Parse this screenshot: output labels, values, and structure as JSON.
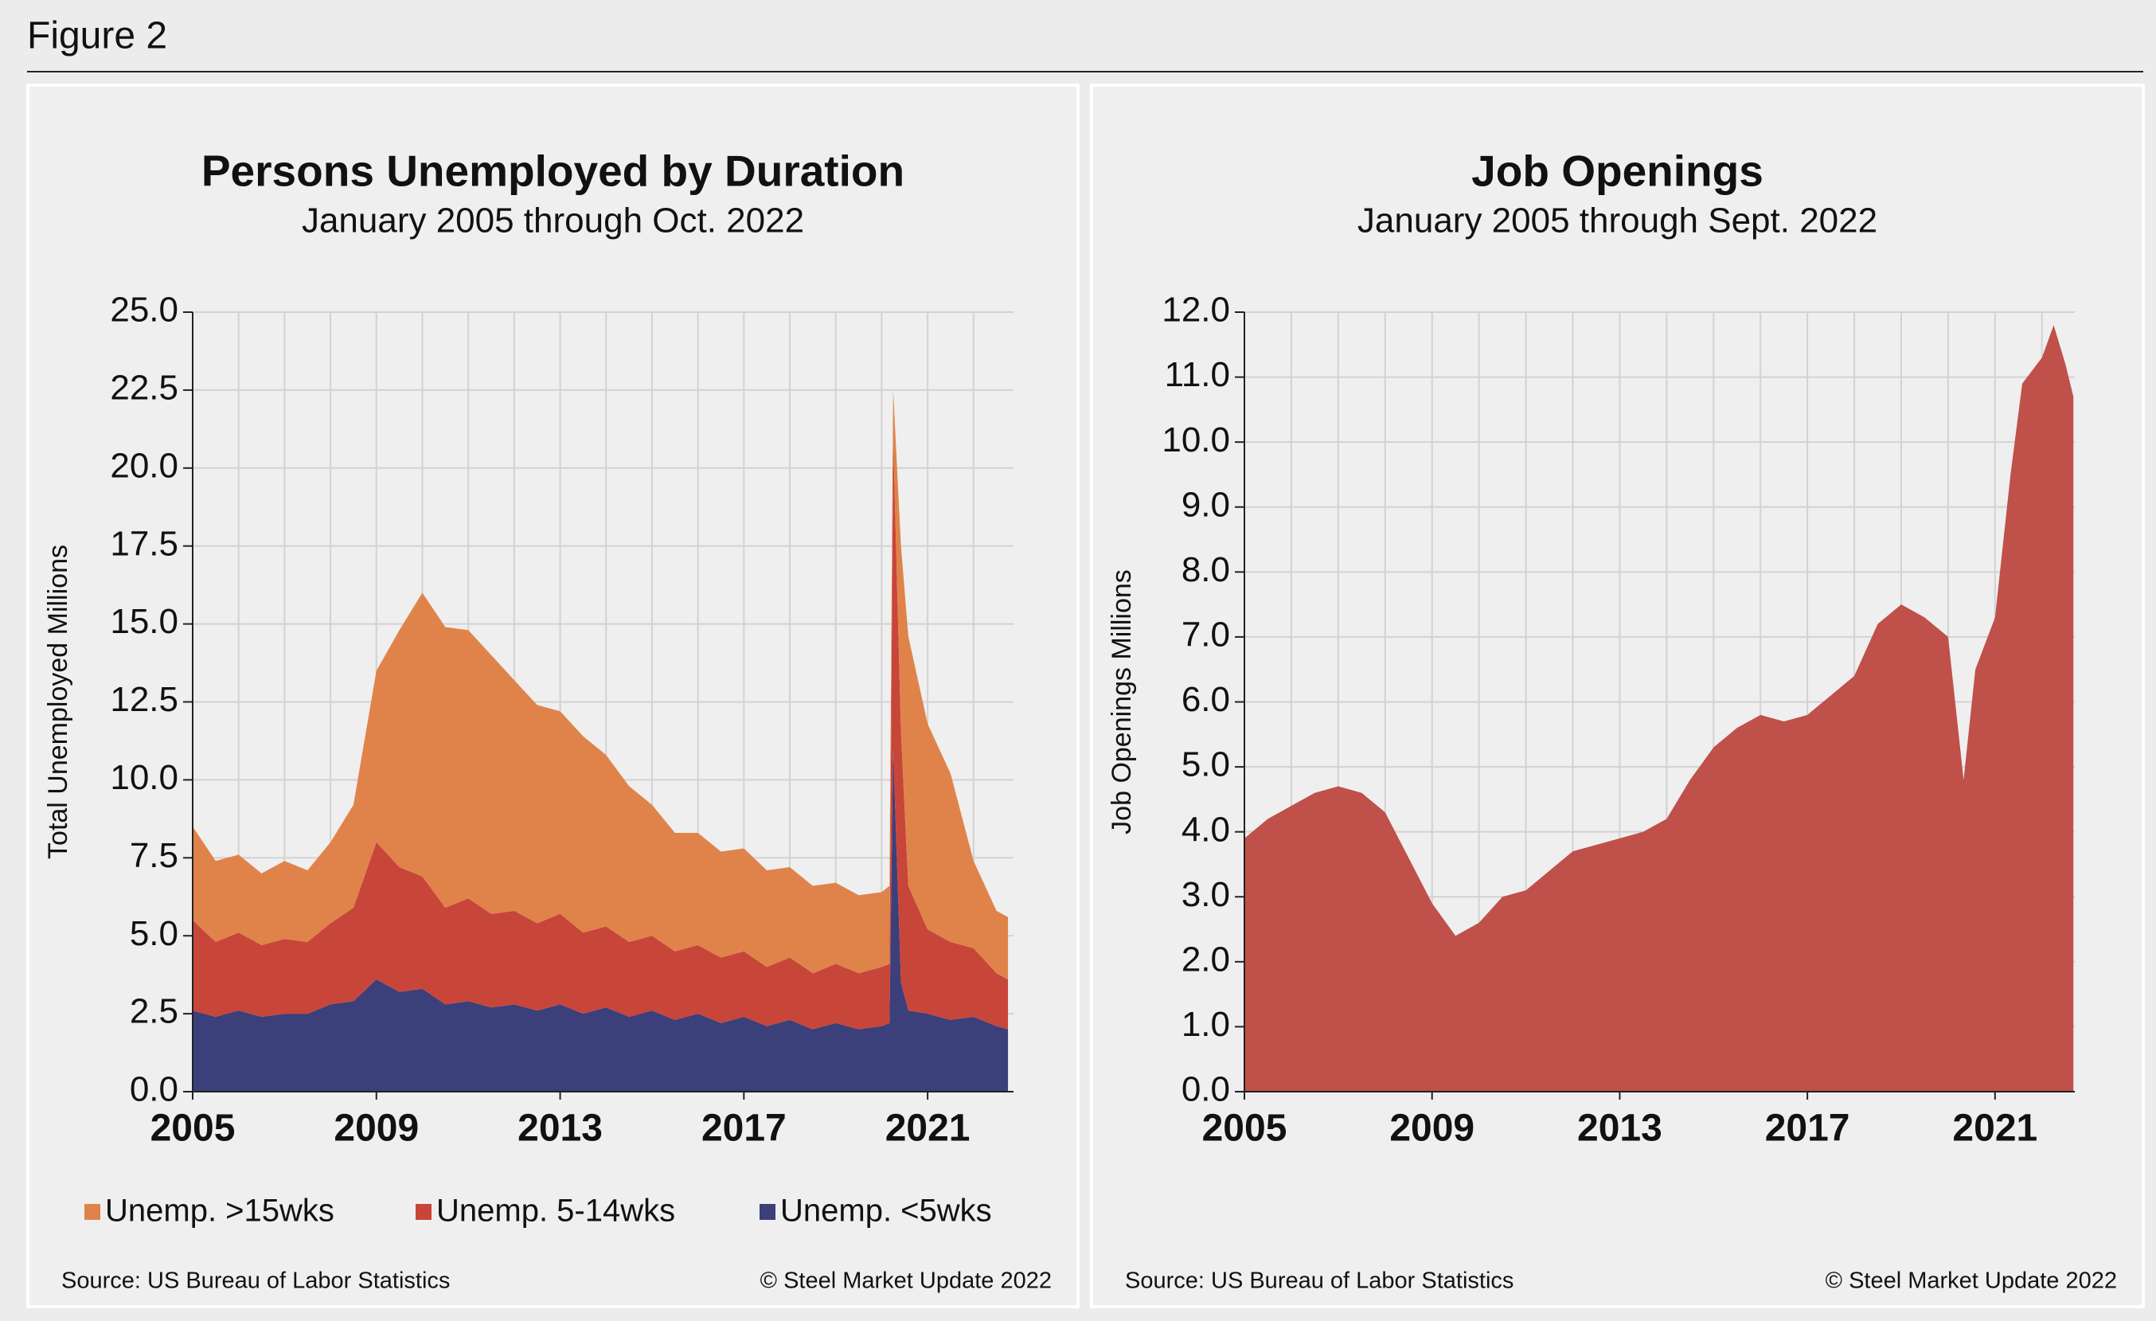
{
  "figure_label": "Figure 2",
  "chart_data": [
    {
      "type": "stacked-area",
      "title": "Persons Unemployed by Duration",
      "subtitle": "January 2005 through Oct. 2022",
      "y_label": "Total Unemployed Millions",
      "x": [
        2005.0,
        2005.5,
        2006.0,
        2006.5,
        2007.0,
        2007.5,
        2008.0,
        2008.5,
        2009.0,
        2009.5,
        2010.0,
        2010.5,
        2011.0,
        2011.5,
        2012.0,
        2012.5,
        2013.0,
        2013.5,
        2014.0,
        2014.5,
        2015.0,
        2015.5,
        2016.0,
        2016.5,
        2017.0,
        2017.5,
        2018.0,
        2018.5,
        2019.0,
        2019.5,
        2020.0,
        2020.17,
        2020.25,
        2020.42,
        2020.58,
        2021.0,
        2021.5,
        2022.0,
        2022.5,
        2022.75
      ],
      "series": [
        {
          "name": "Unemp. >15wks",
          "color": "#e0834a",
          "values": [
            3.0,
            2.6,
            2.5,
            2.3,
            2.5,
            2.3,
            2.6,
            3.3,
            5.5,
            7.6,
            9.1,
            9.0,
            8.6,
            8.3,
            7.4,
            7.0,
            6.5,
            6.3,
            5.5,
            5.0,
            4.2,
            3.8,
            3.6,
            3.4,
            3.3,
            3.1,
            2.9,
            2.8,
            2.6,
            2.5,
            2.4,
            2.5,
            1.5,
            6.0,
            8.0,
            6.6,
            5.4,
            2.8,
            2.0,
            2.0
          ]
        },
        {
          "name": "Unemp. 5-14wks",
          "color": "#c8453a",
          "values": [
            2.9,
            2.4,
            2.5,
            2.3,
            2.4,
            2.3,
            2.6,
            3.0,
            4.4,
            4.0,
            3.6,
            3.1,
            3.3,
            3.0,
            3.0,
            2.8,
            2.9,
            2.6,
            2.6,
            2.4,
            2.4,
            2.2,
            2.2,
            2.1,
            2.1,
            1.9,
            2.0,
            1.8,
            1.9,
            1.8,
            1.9,
            1.9,
            10.0,
            8.0,
            4.0,
            2.7,
            2.5,
            2.2,
            1.7,
            1.6
          ]
        },
        {
          "name": "Unemp. <5wks",
          "color": "#3b3f7a",
          "values": [
            2.6,
            2.4,
            2.6,
            2.4,
            2.5,
            2.5,
            2.8,
            2.9,
            3.6,
            3.2,
            3.3,
            2.8,
            2.9,
            2.7,
            2.8,
            2.6,
            2.8,
            2.5,
            2.7,
            2.4,
            2.6,
            2.3,
            2.5,
            2.2,
            2.4,
            2.1,
            2.3,
            2.0,
            2.2,
            2.0,
            2.1,
            2.2,
            11.0,
            3.5,
            2.6,
            2.5,
            2.3,
            2.4,
            2.1,
            2.0
          ]
        }
      ],
      "xlim": [
        2005,
        2022.87
      ],
      "xticks": [
        2005,
        2009,
        2013,
        2017,
        2021
      ],
      "ylim": [
        0,
        25
      ],
      "yticks": [
        {
          "value": 0,
          "label": "0.0"
        },
        2.5,
        {
          "value": 5,
          "label": "5.0"
        },
        7.5,
        {
          "value": 10,
          "label": "10.0"
        },
        12.5,
        {
          "value": 15,
          "label": "15.0"
        },
        17.5,
        {
          "value": 20,
          "label": "20.0"
        },
        22.5,
        {
          "value": 25,
          "label": "25.0"
        }
      ],
      "grid": true,
      "legend": "bottom",
      "source": "Source: US Bureau of Labor Statistics",
      "copyright": "© Steel Market Update 2022"
    },
    {
      "type": "area",
      "title": "Job Openings",
      "subtitle": "January 2005 through Sept. 2022",
      "y_label": "Job Openings Millions",
      "x": [
        2005.0,
        2005.5,
        2006.0,
        2006.5,
        2007.0,
        2007.5,
        2008.0,
        2008.5,
        2009.0,
        2009.5,
        2010.0,
        2010.5,
        2011.0,
        2011.5,
        2012.0,
        2012.5,
        2013.0,
        2013.5,
        2014.0,
        2014.5,
        2015.0,
        2015.5,
        2016.0,
        2016.5,
        2017.0,
        2017.5,
        2018.0,
        2018.5,
        2019.0,
        2019.5,
        2020.0,
        2020.33,
        2020.58,
        2021.0,
        2021.33,
        2021.58,
        2022.0,
        2022.25,
        2022.5,
        2022.67
      ],
      "values": [
        3.9,
        4.2,
        4.4,
        4.6,
        4.7,
        4.6,
        4.3,
        3.6,
        2.9,
        2.4,
        2.6,
        3.0,
        3.1,
        3.4,
        3.7,
        3.8,
        3.9,
        4.0,
        4.2,
        4.8,
        5.3,
        5.6,
        5.8,
        5.7,
        5.8,
        6.1,
        6.4,
        7.2,
        7.5,
        7.3,
        7.0,
        4.8,
        6.5,
        7.3,
        9.5,
        10.9,
        11.3,
        11.8,
        11.2,
        10.7
      ],
      "color": "#c0504a",
      "xlim": [
        2005,
        2022.7
      ],
      "xticks": [
        2005,
        2009,
        2013,
        2017,
        2021
      ],
      "ylim": [
        0,
        12
      ],
      "yticks": [
        {
          "value": 0,
          "label": "0.0"
        },
        {
          "value": 1,
          "label": "1.0"
        },
        {
          "value": 2,
          "label": "2.0"
        },
        {
          "value": 3,
          "label": "3.0"
        },
        {
          "value": 4,
          "label": "4.0"
        },
        {
          "value": 5,
          "label": "5.0"
        },
        {
          "value": 6,
          "label": "6.0"
        },
        {
          "value": 7,
          "label": "7.0"
        },
        {
          "value": 8,
          "label": "8.0"
        },
        {
          "value": 9,
          "label": "9.0"
        },
        {
          "value": 10,
          "label": "10.0"
        },
        {
          "value": 11,
          "label": "11.0"
        },
        {
          "value": 12,
          "label": "12.0"
        }
      ],
      "grid": true,
      "source": "Source: US Bureau of Labor Statistics",
      "copyright": "© Steel Market Update 2022"
    }
  ]
}
